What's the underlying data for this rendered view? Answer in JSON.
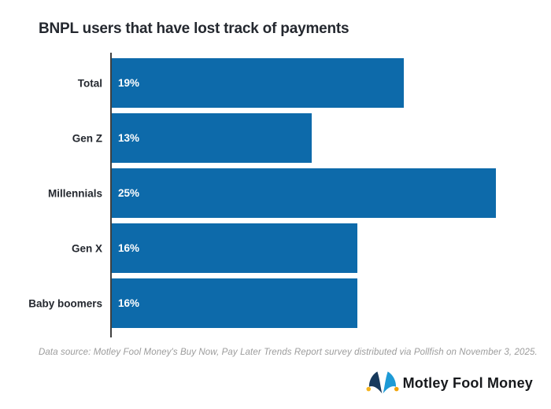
{
  "chart_data": {
    "type": "bar",
    "orientation": "horizontal",
    "title": "BNPL users that have lost track of payments",
    "categories": [
      "Total",
      "Gen Z",
      "Millennials",
      "Gen X",
      "Baby boomers"
    ],
    "values": [
      19,
      13,
      25,
      16,
      16
    ],
    "value_labels": [
      "19%",
      "13%",
      "25%",
      "16%",
      "16%"
    ],
    "xlabel": "",
    "ylabel": "",
    "xlim": [
      0,
      25
    ],
    "grid": false,
    "legend": false,
    "bar_color": "#0d6aaa",
    "value_label_color": "#ffffff",
    "axis_line_color": "#404040",
    "label_color": "#24282f"
  },
  "footer": {
    "source_note": "Data source: Motley Fool Money's Buy Now, Pay Later Trends Report survey distributed via Pollfish on November 3, 2025.",
    "logo": {
      "text": "Motley Fool Money",
      "icon": "jester-hat-icon",
      "hat_left_color": "#17395c",
      "hat_right_color": "#1d9ad6",
      "bell_left_color": "#f6b41d",
      "bell_right_color": "#f0a30a",
      "text_color": "#17191c"
    }
  }
}
